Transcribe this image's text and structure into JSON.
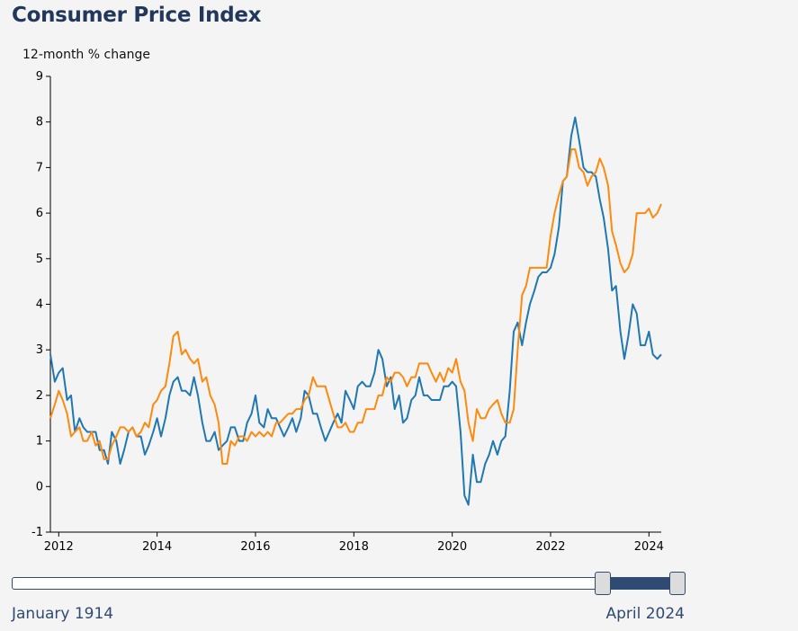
{
  "title": "Consumer Price Index",
  "slider": {
    "start_label": "January 1914",
    "end_label": "April 2024"
  },
  "colors": {
    "series1": "#1f77b4",
    "series2": "#ff8a0e",
    "accent": "#22375c"
  },
  "chart_data": {
    "type": "line",
    "title": "Consumer Price Index",
    "ylabel": "12-month % change",
    "xlabel": "",
    "xlim": [
      2011.83,
      2024.25
    ],
    "ylim": [
      -1,
      9
    ],
    "x_ticks": [
      2012,
      2014,
      2016,
      2018,
      2020,
      2022,
      2024
    ],
    "y_ticks": [
      -1,
      0,
      1,
      2,
      3,
      4,
      5,
      6,
      7,
      8,
      9
    ],
    "grid": false,
    "series": [
      {
        "color": "#1f77b4",
        "points": [
          [
            2011.83,
            2.9
          ],
          [
            2011.92,
            2.3
          ],
          [
            2012.0,
            2.5
          ],
          [
            2012.08,
            2.6
          ],
          [
            2012.17,
            1.9
          ],
          [
            2012.25,
            2.0
          ],
          [
            2012.33,
            1.2
          ],
          [
            2012.42,
            1.5
          ],
          [
            2012.5,
            1.3
          ],
          [
            2012.58,
            1.2
          ],
          [
            2012.67,
            1.2
          ],
          [
            2012.75,
            1.2
          ],
          [
            2012.83,
            0.8
          ],
          [
            2012.92,
            0.8
          ],
          [
            2013.0,
            0.5
          ],
          [
            2013.08,
            1.2
          ],
          [
            2013.17,
            1.0
          ],
          [
            2013.25,
            0.5
          ],
          [
            2013.33,
            0.8
          ],
          [
            2013.42,
            1.2
          ],
          [
            2013.5,
            1.3
          ],
          [
            2013.58,
            1.1
          ],
          [
            2013.67,
            1.1
          ],
          [
            2013.75,
            0.7
          ],
          [
            2013.83,
            0.9
          ],
          [
            2013.92,
            1.2
          ],
          [
            2014.0,
            1.5
          ],
          [
            2014.08,
            1.1
          ],
          [
            2014.17,
            1.5
          ],
          [
            2014.25,
            2.0
          ],
          [
            2014.33,
            2.3
          ],
          [
            2014.42,
            2.4
          ],
          [
            2014.5,
            2.1
          ],
          [
            2014.58,
            2.1
          ],
          [
            2014.67,
            2.0
          ],
          [
            2014.75,
            2.4
          ],
          [
            2014.83,
            2.0
          ],
          [
            2014.92,
            1.4
          ],
          [
            2015.0,
            1.0
          ],
          [
            2015.08,
            1.0
          ],
          [
            2015.17,
            1.2
          ],
          [
            2015.25,
            0.8
          ],
          [
            2015.33,
            0.9
          ],
          [
            2015.42,
            1.0
          ],
          [
            2015.5,
            1.3
          ],
          [
            2015.58,
            1.3
          ],
          [
            2015.67,
            1.0
          ],
          [
            2015.75,
            1.0
          ],
          [
            2015.83,
            1.4
          ],
          [
            2015.92,
            1.6
          ],
          [
            2016.0,
            2.0
          ],
          [
            2016.08,
            1.4
          ],
          [
            2016.17,
            1.3
          ],
          [
            2016.25,
            1.7
          ],
          [
            2016.33,
            1.5
          ],
          [
            2016.42,
            1.5
          ],
          [
            2016.5,
            1.3
          ],
          [
            2016.58,
            1.1
          ],
          [
            2016.67,
            1.3
          ],
          [
            2016.75,
            1.5
          ],
          [
            2016.83,
            1.2
          ],
          [
            2016.92,
            1.5
          ],
          [
            2017.0,
            2.1
          ],
          [
            2017.08,
            2.0
          ],
          [
            2017.17,
            1.6
          ],
          [
            2017.25,
            1.6
          ],
          [
            2017.33,
            1.3
          ],
          [
            2017.42,
            1.0
          ],
          [
            2017.5,
            1.2
          ],
          [
            2017.58,
            1.4
          ],
          [
            2017.67,
            1.6
          ],
          [
            2017.75,
            1.4
          ],
          [
            2017.83,
            2.1
          ],
          [
            2017.92,
            1.9
          ],
          [
            2018.0,
            1.7
          ],
          [
            2018.08,
            2.2
          ],
          [
            2018.17,
            2.3
          ],
          [
            2018.25,
            2.2
          ],
          [
            2018.33,
            2.2
          ],
          [
            2018.42,
            2.5
          ],
          [
            2018.5,
            3.0
          ],
          [
            2018.58,
            2.8
          ],
          [
            2018.67,
            2.2
          ],
          [
            2018.75,
            2.4
          ],
          [
            2018.83,
            1.7
          ],
          [
            2018.92,
            2.0
          ],
          [
            2019.0,
            1.4
          ],
          [
            2019.08,
            1.5
          ],
          [
            2019.17,
            1.9
          ],
          [
            2019.25,
            2.0
          ],
          [
            2019.33,
            2.4
          ],
          [
            2019.42,
            2.0
          ],
          [
            2019.5,
            2.0
          ],
          [
            2019.58,
            1.9
          ],
          [
            2019.67,
            1.9
          ],
          [
            2019.75,
            1.9
          ],
          [
            2019.83,
            2.2
          ],
          [
            2019.92,
            2.2
          ],
          [
            2020.0,
            2.3
          ],
          [
            2020.08,
            2.2
          ],
          [
            2020.17,
            1.2
          ],
          [
            2020.25,
            -0.2
          ],
          [
            2020.33,
            -0.4
          ],
          [
            2020.42,
            0.7
          ],
          [
            2020.5,
            0.1
          ],
          [
            2020.58,
            0.1
          ],
          [
            2020.67,
            0.5
          ],
          [
            2020.75,
            0.7
          ],
          [
            2020.83,
            1.0
          ],
          [
            2020.92,
            0.7
          ],
          [
            2021.0,
            1.0
          ],
          [
            2021.08,
            1.1
          ],
          [
            2021.17,
            2.1
          ],
          [
            2021.25,
            3.4
          ],
          [
            2021.33,
            3.6
          ],
          [
            2021.42,
            3.1
          ],
          [
            2021.5,
            3.6
          ],
          [
            2021.58,
            4.0
          ],
          [
            2021.67,
            4.3
          ],
          [
            2021.75,
            4.6
          ],
          [
            2021.83,
            4.7
          ],
          [
            2021.92,
            4.7
          ],
          [
            2022.0,
            4.8
          ],
          [
            2022.08,
            5.1
          ],
          [
            2022.17,
            5.7
          ],
          [
            2022.25,
            6.7
          ],
          [
            2022.33,
            6.8
          ],
          [
            2022.42,
            7.7
          ],
          [
            2022.5,
            8.1
          ],
          [
            2022.58,
            7.6
          ],
          [
            2022.67,
            7.0
          ],
          [
            2022.75,
            6.9
          ],
          [
            2022.83,
            6.9
          ],
          [
            2022.92,
            6.8
          ],
          [
            2023.0,
            6.3
          ],
          [
            2023.08,
            5.9
          ],
          [
            2023.17,
            5.2
          ],
          [
            2023.25,
            4.3
          ],
          [
            2023.33,
            4.4
          ],
          [
            2023.42,
            3.4
          ],
          [
            2023.5,
            2.8
          ],
          [
            2023.58,
            3.3
          ],
          [
            2023.67,
            4.0
          ],
          [
            2023.75,
            3.8
          ],
          [
            2023.83,
            3.1
          ],
          [
            2023.92,
            3.1
          ],
          [
            2024.0,
            3.4
          ],
          [
            2024.08,
            2.9
          ],
          [
            2024.17,
            2.8
          ],
          [
            2024.25,
            2.9
          ],
          [
            2024.33,
            2.7
          ]
        ]
      },
      {
        "color": "#ff8a0e",
        "points": [
          [
            2011.83,
            1.5
          ],
          [
            2011.92,
            1.8
          ],
          [
            2012.0,
            2.1
          ],
          [
            2012.08,
            1.9
          ],
          [
            2012.17,
            1.6
          ],
          [
            2012.25,
            1.1
          ],
          [
            2012.33,
            1.2
          ],
          [
            2012.42,
            1.3
          ],
          [
            2012.5,
            1.0
          ],
          [
            2012.58,
            1.0
          ],
          [
            2012.67,
            1.2
          ],
          [
            2012.75,
            0.9
          ],
          [
            2012.83,
            1.0
          ],
          [
            2012.92,
            0.6
          ],
          [
            2013.0,
            0.6
          ],
          [
            2013.08,
            0.9
          ],
          [
            2013.17,
            1.1
          ],
          [
            2013.25,
            1.3
          ],
          [
            2013.33,
            1.3
          ],
          [
            2013.42,
            1.2
          ],
          [
            2013.5,
            1.3
          ],
          [
            2013.58,
            1.1
          ],
          [
            2013.67,
            1.2
          ],
          [
            2013.75,
            1.4
          ],
          [
            2013.83,
            1.3
          ],
          [
            2013.92,
            1.8
          ],
          [
            2014.0,
            1.9
          ],
          [
            2014.08,
            2.1
          ],
          [
            2014.17,
            2.2
          ],
          [
            2014.25,
            2.7
          ],
          [
            2014.33,
            3.3
          ],
          [
            2014.42,
            3.4
          ],
          [
            2014.5,
            2.9
          ],
          [
            2014.58,
            3.0
          ],
          [
            2014.67,
            2.8
          ],
          [
            2014.75,
            2.7
          ],
          [
            2014.83,
            2.8
          ],
          [
            2014.92,
            2.3
          ],
          [
            2015.0,
            2.4
          ],
          [
            2015.08,
            2.0
          ],
          [
            2015.17,
            1.8
          ],
          [
            2015.25,
            1.4
          ],
          [
            2015.33,
            0.5
          ],
          [
            2015.42,
            0.5
          ],
          [
            2015.5,
            1.0
          ],
          [
            2015.58,
            0.9
          ],
          [
            2015.67,
            1.1
          ],
          [
            2015.75,
            1.1
          ],
          [
            2015.83,
            1.0
          ],
          [
            2015.92,
            1.2
          ],
          [
            2016.0,
            1.1
          ],
          [
            2016.08,
            1.2
          ],
          [
            2016.17,
            1.1
          ],
          [
            2016.25,
            1.2
          ],
          [
            2016.33,
            1.1
          ],
          [
            2016.42,
            1.4
          ],
          [
            2016.5,
            1.4
          ],
          [
            2016.58,
            1.5
          ],
          [
            2016.67,
            1.6
          ],
          [
            2016.75,
            1.6
          ],
          [
            2016.83,
            1.7
          ],
          [
            2016.92,
            1.7
          ],
          [
            2017.0,
            1.9
          ],
          [
            2017.08,
            2.0
          ],
          [
            2017.17,
            2.4
          ],
          [
            2017.25,
            2.2
          ],
          [
            2017.33,
            2.2
          ],
          [
            2017.42,
            2.2
          ],
          [
            2017.5,
            1.9
          ],
          [
            2017.58,
            1.6
          ],
          [
            2017.67,
            1.3
          ],
          [
            2017.75,
            1.3
          ],
          [
            2017.83,
            1.4
          ],
          [
            2017.92,
            1.2
          ],
          [
            2018.0,
            1.2
          ],
          [
            2018.08,
            1.4
          ],
          [
            2018.17,
            1.4
          ],
          [
            2018.25,
            1.7
          ],
          [
            2018.33,
            1.7
          ],
          [
            2018.42,
            1.7
          ],
          [
            2018.5,
            2.0
          ],
          [
            2018.58,
            2.0
          ],
          [
            2018.67,
            2.4
          ],
          [
            2018.75,
            2.3
          ],
          [
            2018.83,
            2.5
          ],
          [
            2018.92,
            2.5
          ],
          [
            2019.0,
            2.4
          ],
          [
            2019.08,
            2.2
          ],
          [
            2019.17,
            2.4
          ],
          [
            2019.25,
            2.4
          ],
          [
            2019.33,
            2.7
          ],
          [
            2019.42,
            2.7
          ],
          [
            2019.5,
            2.7
          ],
          [
            2019.58,
            2.5
          ],
          [
            2019.67,
            2.3
          ],
          [
            2019.75,
            2.5
          ],
          [
            2019.83,
            2.3
          ],
          [
            2019.92,
            2.6
          ],
          [
            2020.0,
            2.5
          ],
          [
            2020.08,
            2.8
          ],
          [
            2020.17,
            2.3
          ],
          [
            2020.25,
            2.1
          ],
          [
            2020.33,
            1.4
          ],
          [
            2020.42,
            1.0
          ],
          [
            2020.5,
            1.7
          ],
          [
            2020.58,
            1.5
          ],
          [
            2020.67,
            1.5
          ],
          [
            2020.75,
            1.7
          ],
          [
            2020.83,
            1.8
          ],
          [
            2020.92,
            1.9
          ],
          [
            2021.0,
            1.6
          ],
          [
            2021.08,
            1.4
          ],
          [
            2021.17,
            1.4
          ],
          [
            2021.25,
            1.7
          ],
          [
            2021.33,
            3.0
          ],
          [
            2021.42,
            4.2
          ],
          [
            2021.5,
            4.4
          ],
          [
            2021.58,
            4.8
          ],
          [
            2021.67,
            4.8
          ],
          [
            2021.75,
            4.8
          ],
          [
            2021.83,
            4.8
          ],
          [
            2021.92,
            4.8
          ],
          [
            2022.0,
            5.5
          ],
          [
            2022.08,
            6.0
          ],
          [
            2022.17,
            6.4
          ],
          [
            2022.25,
            6.7
          ],
          [
            2022.33,
            6.8
          ],
          [
            2022.42,
            7.4
          ],
          [
            2022.5,
            7.4
          ],
          [
            2022.58,
            7.0
          ],
          [
            2022.67,
            6.9
          ],
          [
            2022.75,
            6.6
          ],
          [
            2022.83,
            6.8
          ],
          [
            2022.92,
            6.9
          ],
          [
            2023.0,
            7.2
          ],
          [
            2023.08,
            7.0
          ],
          [
            2023.17,
            6.6
          ],
          [
            2023.25,
            5.6
          ],
          [
            2023.33,
            5.3
          ],
          [
            2023.42,
            4.9
          ],
          [
            2023.5,
            4.7
          ],
          [
            2023.58,
            4.8
          ],
          [
            2023.67,
            5.1
          ],
          [
            2023.75,
            6.0
          ],
          [
            2023.83,
            6.0
          ],
          [
            2023.92,
            6.0
          ],
          [
            2024.0,
            6.1
          ],
          [
            2024.08,
            5.9
          ],
          [
            2024.17,
            6.0
          ],
          [
            2024.25,
            6.2
          ],
          [
            2024.33,
            6.5
          ],
          [
            2024.42,
            6.5
          ],
          [
            2024.5,
            6.4
          ]
        ]
      }
    ]
  }
}
